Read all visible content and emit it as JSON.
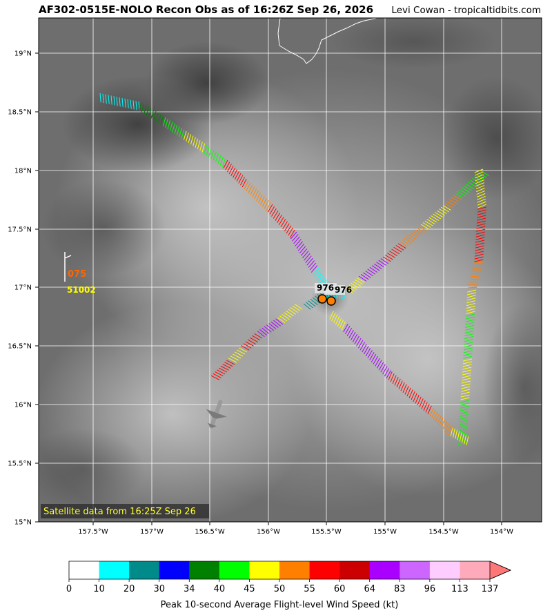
{
  "title": "AF302-0515E-NOLO Recon Obs as of 16:26Z Sep 26, 2026",
  "credit": "Levi Cowan - tropicaltidbits.com",
  "satellite_note": "Satellite data from 16:25Z Sep 26",
  "map": {
    "lon_ticks": [
      "157.5°W",
      "157°W",
      "156.5°W",
      "156°W",
      "155.5°W",
      "155°W",
      "154.5°W",
      "154°W"
    ],
    "lat_ticks": [
      "19°N",
      "18.5°N",
      "18°N",
      "17.5°N",
      "17°N",
      "16.5°N",
      "16°N",
      "15.5°N",
      "15°N"
    ]
  },
  "reference_ob": {
    "wind_label": "075",
    "pressure_label": "51002",
    "wind_color": "#ff6600",
    "pressure_color": "#ffff00"
  },
  "center_fixes": {
    "pressure_labels": [
      "976",
      "976"
    ],
    "marker_color": "#ff8000"
  },
  "colorbar": {
    "label": "Peak 10-second Average Flight-level Wind Speed (kt)",
    "ticks": [
      "0",
      "10",
      "20",
      "30",
      "34",
      "40",
      "45",
      "50",
      "55",
      "60",
      "64",
      "83",
      "96",
      "113",
      "137"
    ],
    "colors": [
      "#ffffff",
      "#00ffff",
      "#008b8b",
      "#0000ff",
      "#008000",
      "#00ff00",
      "#ffff00",
      "#ff8000",
      "#ff0000",
      "#cc0000",
      "#aa00ff",
      "#cc66ff",
      "#ffccff",
      "#ffaabb"
    ],
    "extend_color": "#ff7777"
  }
}
